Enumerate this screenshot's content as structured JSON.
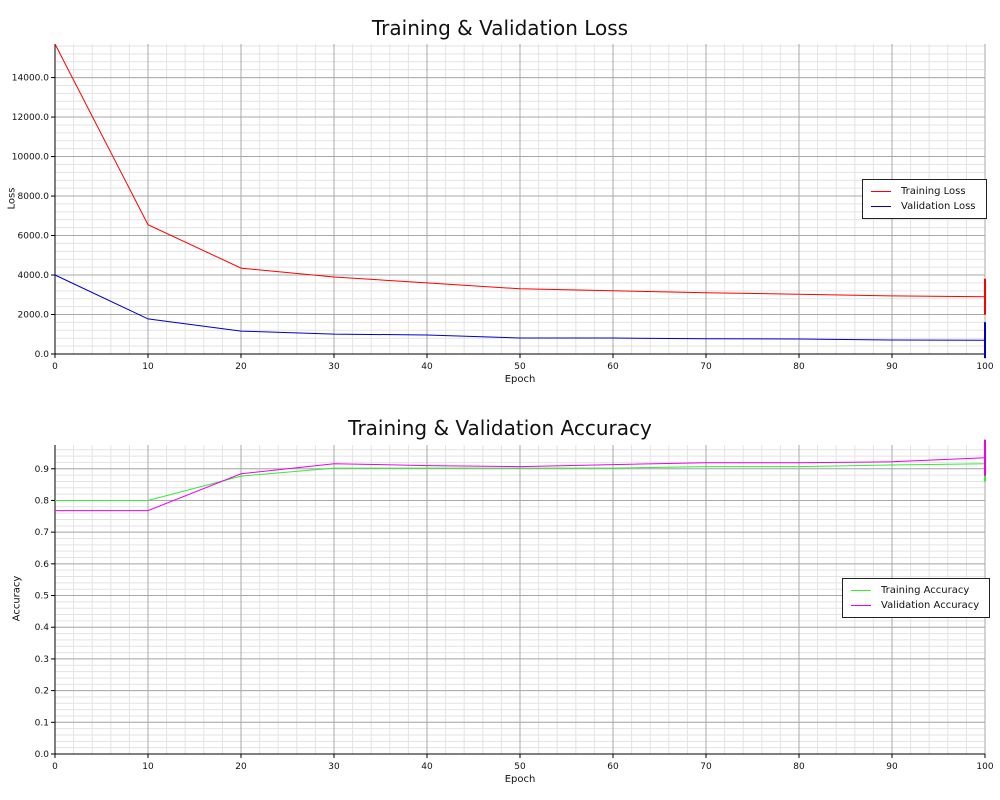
{
  "chart_data": [
    {
      "type": "line",
      "title": "Training & Validation Loss",
      "xlabel": "Epoch",
      "ylabel": "Loss",
      "xlim": [
        0,
        100
      ],
      "ylim": [
        0,
        15700
      ],
      "xticks": [
        0,
        10,
        20,
        30,
        40,
        50,
        60,
        70,
        80,
        90,
        100
      ],
      "yticks": [
        0,
        2000,
        4000,
        6000,
        8000,
        10000,
        12000,
        14000
      ],
      "ytick_labels": [
        "0.0",
        "2000.0",
        "4000.0",
        "6000.0",
        "8000.0",
        "10000.0",
        "12000.0",
        "14000.0"
      ],
      "grid": true,
      "legend_position": "right",
      "x": [
        0,
        10,
        20,
        30,
        40,
        50,
        60,
        70,
        80,
        90,
        100
      ],
      "series": [
        {
          "name": "Training Loss",
          "color": "#ff0000",
          "values": [
            15700,
            6550,
            4350,
            3900,
            3600,
            3300,
            3200,
            3100,
            3030,
            2940,
            2900
          ]
        },
        {
          "name": "Validation Loss",
          "color": "#0000cc",
          "values": [
            4000,
            1780,
            1160,
            1010,
            960,
            810,
            810,
            770,
            760,
            710,
            700
          ]
        }
      ]
    },
    {
      "type": "line",
      "title": "Training & Validation Accuracy",
      "xlabel": "Epoch",
      "ylabel": "Accuracy",
      "xlim": [
        0,
        100
      ],
      "ylim": [
        0,
        0.975
      ],
      "xticks": [
        0,
        10,
        20,
        30,
        40,
        50,
        60,
        70,
        80,
        90,
        100
      ],
      "yticks": [
        0,
        0.1,
        0.2,
        0.3,
        0.4,
        0.5,
        0.6,
        0.7,
        0.8,
        0.9
      ],
      "ytick_labels": [
        "0.0",
        "0.1",
        "0.2",
        "0.3",
        "0.4",
        "0.5",
        "0.6",
        "0.7",
        "0.8",
        "0.9"
      ],
      "grid": true,
      "legend_position": "right",
      "x": [
        0,
        10,
        20,
        30,
        40,
        50,
        60,
        70,
        80,
        90,
        100
      ],
      "series": [
        {
          "name": "Training Accuracy",
          "color": "#33ee33",
          "values": [
            0.8,
            0.8,
            0.877,
            0.902,
            0.902,
            0.902,
            0.902,
            0.907,
            0.907,
            0.912,
            0.916
          ]
        },
        {
          "name": "Validation Accuracy",
          "color": "#ee00ee",
          "values": [
            0.768,
            0.768,
            0.884,
            0.916,
            0.91,
            0.907,
            0.913,
            0.919,
            0.919,
            0.922,
            0.935
          ]
        }
      ]
    }
  ]
}
